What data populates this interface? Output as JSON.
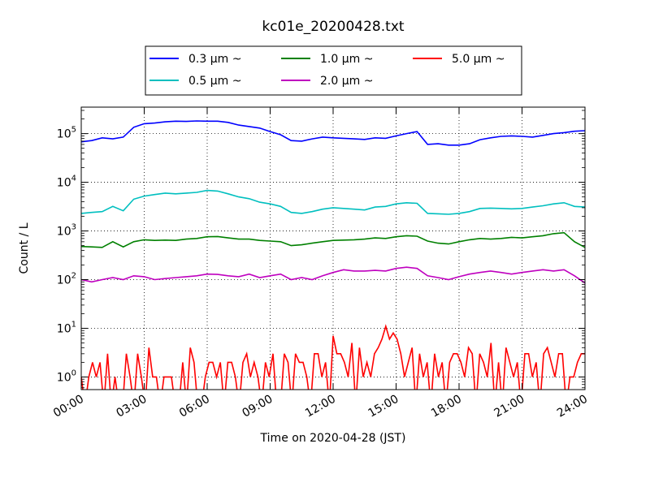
{
  "chart_data": {
    "type": "line",
    "title": "kc01e_20200428.txt",
    "xlabel": "Time on 2020-04-28 (JST)",
    "ylabel": "Count / L",
    "xlim": [
      "00:00",
      "24:00"
    ],
    "xticks": [
      "00:00",
      "03:00",
      "06:00",
      "09:00",
      "12:00",
      "15:00",
      "18:00",
      "21:00",
      "24:00"
    ],
    "ylim": [
      0.55,
      350000
    ],
    "yscale": "log",
    "yticks": [
      {
        "value": 1,
        "base": "10",
        "exp": "0"
      },
      {
        "value": 10,
        "base": "10",
        "exp": "1"
      },
      {
        "value": 100,
        "base": "10",
        "exp": "2"
      },
      {
        "value": 1000,
        "base": "10",
        "exp": "3"
      },
      {
        "value": 10000,
        "base": "10",
        "exp": "4"
      },
      {
        "value": 100000,
        "base": "10",
        "exp": "5"
      }
    ],
    "grid": true,
    "legend_position": "top-center",
    "legend_columns": 3,
    "x_hours": [
      0,
      0.5,
      1,
      1.5,
      2,
      2.5,
      3,
      3.5,
      4,
      4.5,
      5,
      5.5,
      6,
      6.5,
      7,
      7.5,
      8,
      8.5,
      9,
      9.5,
      10,
      10.5,
      11,
      11.5,
      12,
      12.5,
      13,
      13.5,
      14,
      14.5,
      15,
      15.5,
      16,
      16.5,
      17,
      17.5,
      18,
      18.5,
      19,
      19.5,
      20,
      20.5,
      21,
      21.5,
      22,
      22.5,
      23,
      23.5,
      24
    ],
    "series": [
      {
        "name": "0.3 μm ~",
        "color": "#0000ff",
        "values": [
          68000,
          72000,
          82000,
          78000,
          85000,
          135000,
          160000,
          165000,
          175000,
          180000,
          178000,
          182000,
          180000,
          180000,
          170000,
          150000,
          140000,
          130000,
          110000,
          95000,
          72000,
          70000,
          78000,
          85000,
          82000,
          80000,
          78000,
          76000,
          82000,
          80000,
          90000,
          100000,
          110000,
          60000,
          62000,
          58000,
          58000,
          62000,
          75000,
          82000,
          88000,
          90000,
          88000,
          85000,
          92000,
          100000,
          105000,
          112000,
          115000
        ]
      },
      {
        "name": "0.5 μm ~",
        "color": "#00bfbf",
        "values": [
          2300,
          2400,
          2500,
          3200,
          2600,
          4500,
          5200,
          5600,
          6000,
          5800,
          6000,
          6200,
          6800,
          6600,
          5800,
          5000,
          4600,
          3900,
          3600,
          3200,
          2400,
          2300,
          2500,
          2800,
          3000,
          2900,
          2800,
          2700,
          3100,
          3200,
          3600,
          3800,
          3700,
          2300,
          2250,
          2200,
          2300,
          2500,
          2900,
          2950,
          2900,
          2850,
          2900,
          3100,
          3300,
          3600,
          3800,
          3200,
          3100
        ]
      },
      {
        "name": "1.0 μm ~",
        "color": "#008000",
        "values": [
          480,
          470,
          460,
          600,
          470,
          600,
          660,
          640,
          650,
          640,
          680,
          700,
          760,
          770,
          720,
          680,
          680,
          640,
          620,
          600,
          500,
          520,
          560,
          600,
          640,
          650,
          660,
          680,
          720,
          700,
          760,
          800,
          780,
          620,
          560,
          540,
          600,
          660,
          700,
          680,
          700,
          740,
          720,
          760,
          800,
          880,
          920,
          600,
          460
        ]
      },
      {
        "name": "2.0 μm ~",
        "color": "#bf00bf",
        "values": [
          100,
          90,
          100,
          110,
          100,
          120,
          115,
          100,
          105,
          110,
          115,
          120,
          130,
          128,
          120,
          115,
          130,
          110,
          120,
          130,
          100,
          110,
          100,
          120,
          140,
          160,
          150,
          150,
          155,
          150,
          170,
          180,
          170,
          120,
          110,
          100,
          115,
          130,
          140,
          150,
          140,
          130,
          140,
          150,
          160,
          150,
          160,
          120,
          85
        ]
      }
    ],
    "series_5um": {
      "name": "5.0 μm ~",
      "color": "#ff0000",
      "values": [
        1,
        0,
        1,
        2,
        1,
        2,
        0,
        3,
        0,
        1,
        0,
        0,
        3,
        1,
        0,
        3,
        1,
        0,
        4,
        1,
        1,
        0,
        1,
        1,
        1,
        0,
        0,
        2,
        0,
        4,
        2,
        0,
        0,
        1,
        2,
        2,
        1,
        2,
        0,
        2,
        2,
        1,
        0,
        2,
        3,
        1,
        2,
        1,
        0,
        2,
        1,
        3,
        0,
        0,
        3,
        2,
        0,
        3,
        2,
        2,
        1,
        0,
        3,
        3,
        1,
        2,
        0,
        7,
        3,
        3,
        2,
        1,
        5,
        0,
        4,
        1,
        2,
        1,
        3,
        4,
        6,
        11,
        6,
        8,
        6,
        3,
        1,
        2,
        4,
        0,
        3,
        1,
        2,
        0,
        3,
        1,
        2,
        0,
        2,
        3,
        3,
        2,
        1,
        4,
        3,
        0,
        3,
        2,
        1,
        5,
        0,
        2,
        0,
        4,
        2,
        1,
        2,
        0,
        3,
        3,
        1,
        2,
        0,
        3,
        4,
        2,
        1,
        3,
        3,
        0,
        1,
        1,
        2,
        3,
        3
      ]
    }
  }
}
